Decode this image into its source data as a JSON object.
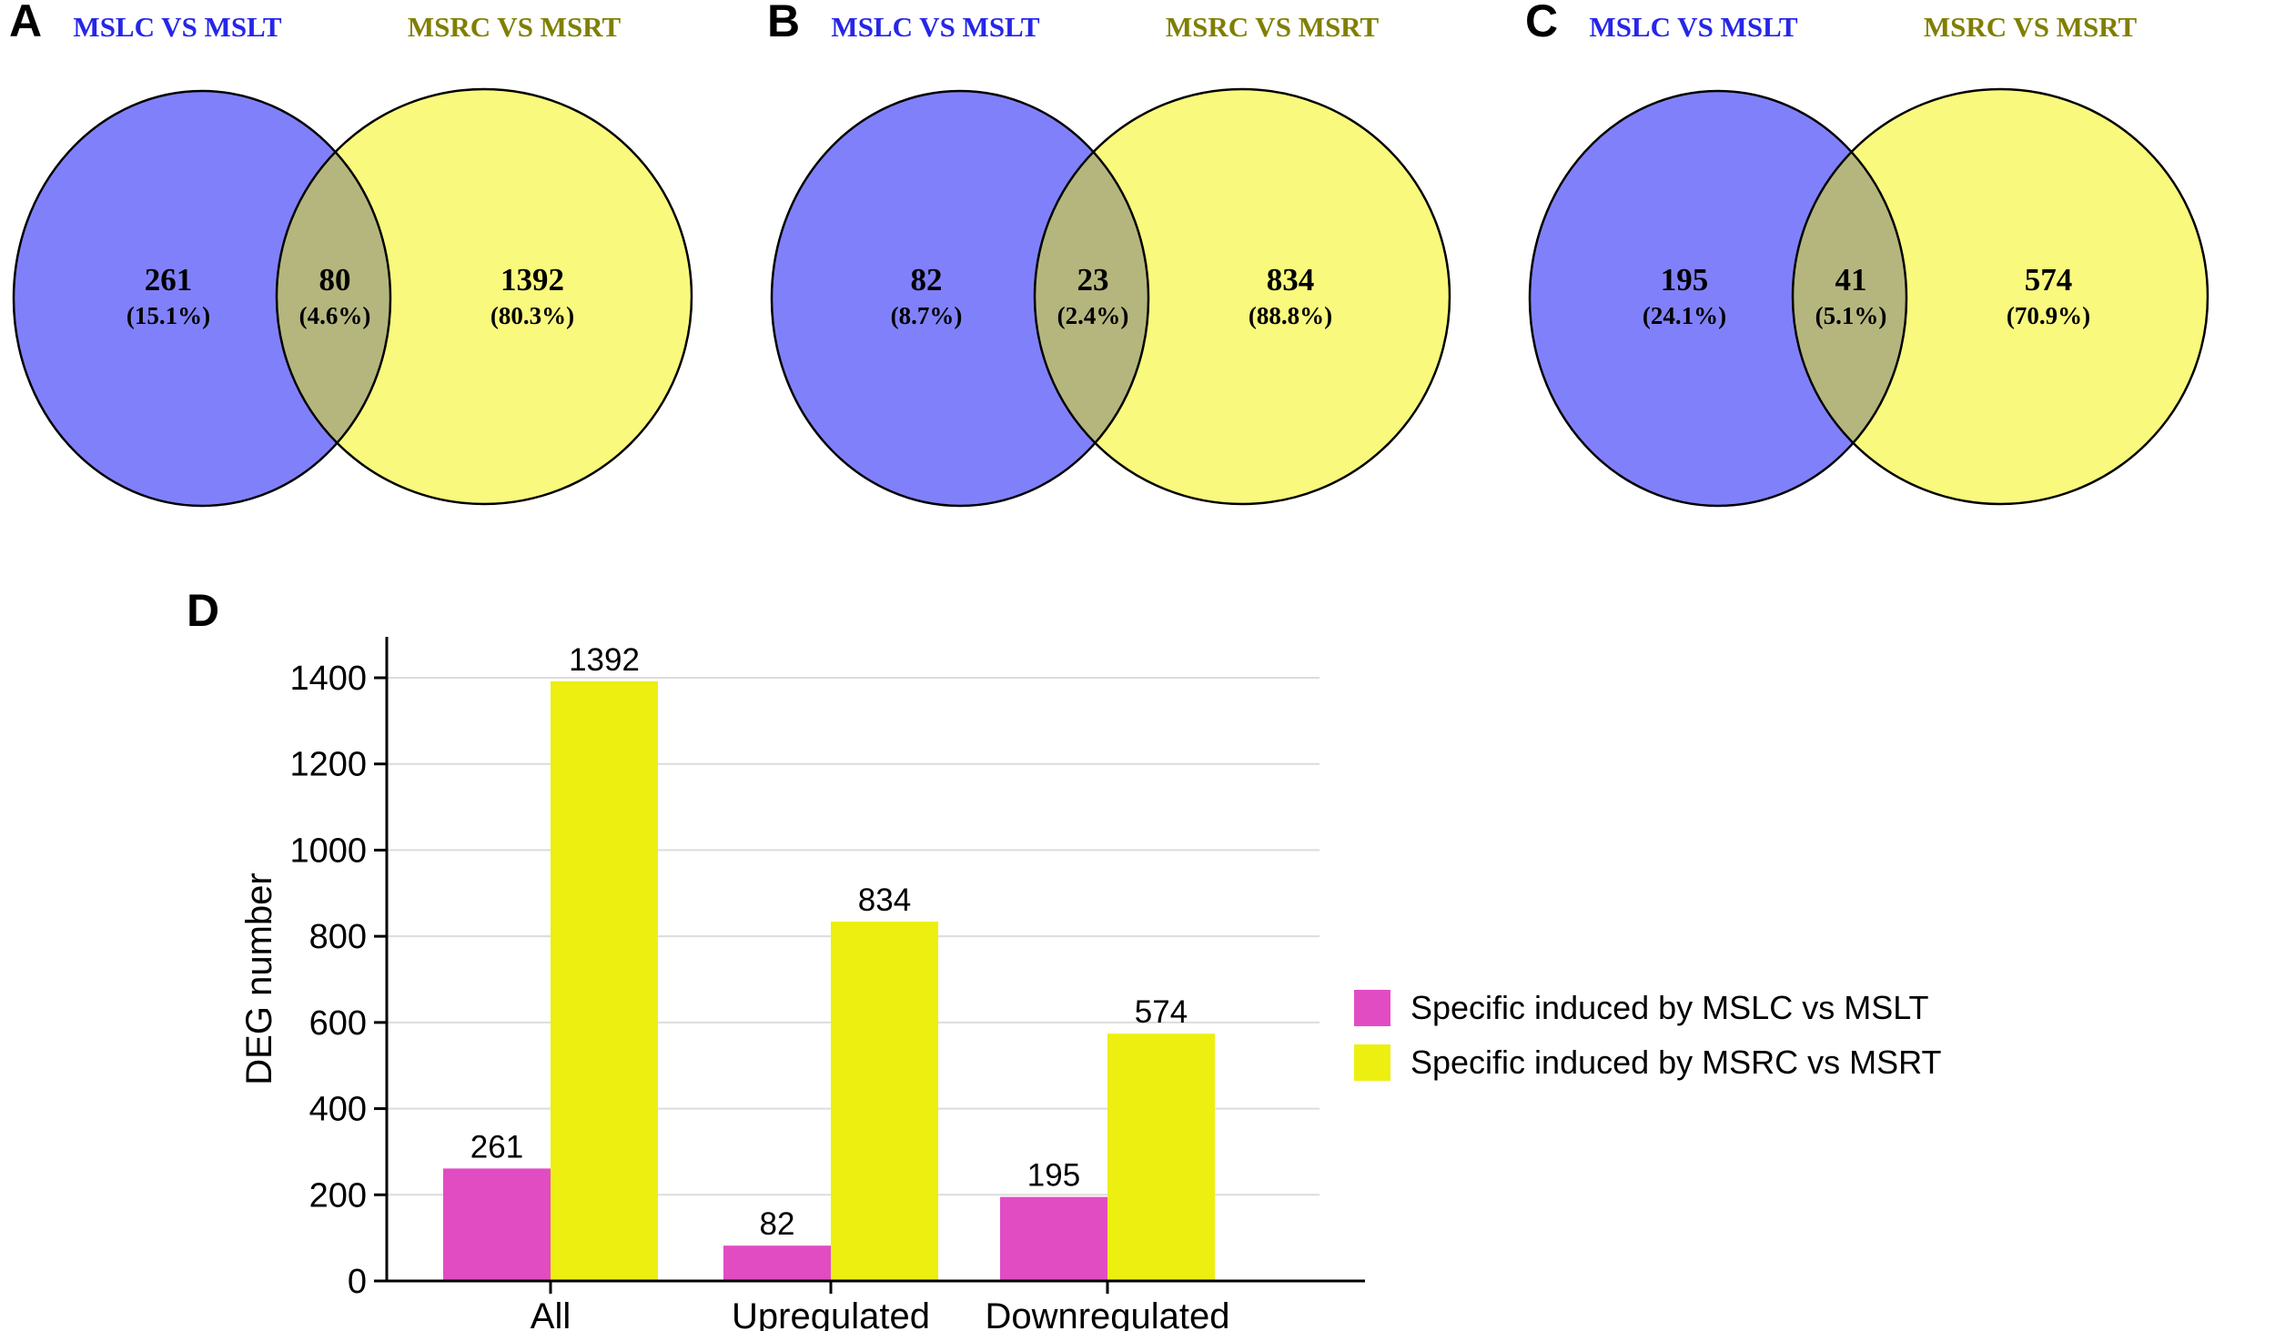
{
  "panels": [
    {
      "letter": "A",
      "left_title": "MSLC VS MSLT",
      "right_title": "MSRC VS MSRT",
      "left": {
        "value": "261",
        "pct": "(15.1%)"
      },
      "overlap": {
        "value": "80",
        "pct": "(4.6%)"
      },
      "right": {
        "value": "1392",
        "pct": "(80.3%)"
      }
    },
    {
      "letter": "B",
      "left_title": "MSLC VS MSLT",
      "right_title": "MSRC VS MSRT",
      "left": {
        "value": "82",
        "pct": "(8.7%)"
      },
      "overlap": {
        "value": "23",
        "pct": "(2.4%)"
      },
      "right": {
        "value": "834",
        "pct": "(88.8%)"
      }
    },
    {
      "letter": "C",
      "left_title": "MSLC VS MSLT",
      "right_title": "MSRC VS MSRT",
      "left": {
        "value": "195",
        "pct": "(24.1%)"
      },
      "overlap": {
        "value": "41",
        "pct": "(5.1%)"
      },
      "right": {
        "value": "574",
        "pct": "(70.9%)"
      }
    }
  ],
  "venn_colors": {
    "left_fill": "#8081fa",
    "right_fill": "#f9f97e",
    "overlap_fill": "#b5b67e",
    "outline": "#000000",
    "left_title_color": "#2626e8",
    "right_title_color": "#807f00"
  },
  "chart_panel": {
    "letter": "D"
  },
  "chart_data": {
    "type": "bar",
    "categories": [
      "All",
      "Upregulated",
      "Downregulated"
    ],
    "series": [
      {
        "name": "Specific induced by MSLC vs MSLT",
        "color": "#e24cc3",
        "values": [
          261,
          82,
          195
        ]
      },
      {
        "name": "Specific induced by MSRC vs MSRT",
        "color": "#edef11",
        "values": [
          1392,
          834,
          574
        ]
      }
    ],
    "title": "",
    "xlabel": "",
    "ylabel": "DEG number",
    "ylim": [
      0,
      1400
    ],
    "ytick_step": 200,
    "grid": true,
    "gridline_color": "#dcdcdc",
    "axis_color": "#000000",
    "text_color": "#000000",
    "legend_position": "right"
  }
}
